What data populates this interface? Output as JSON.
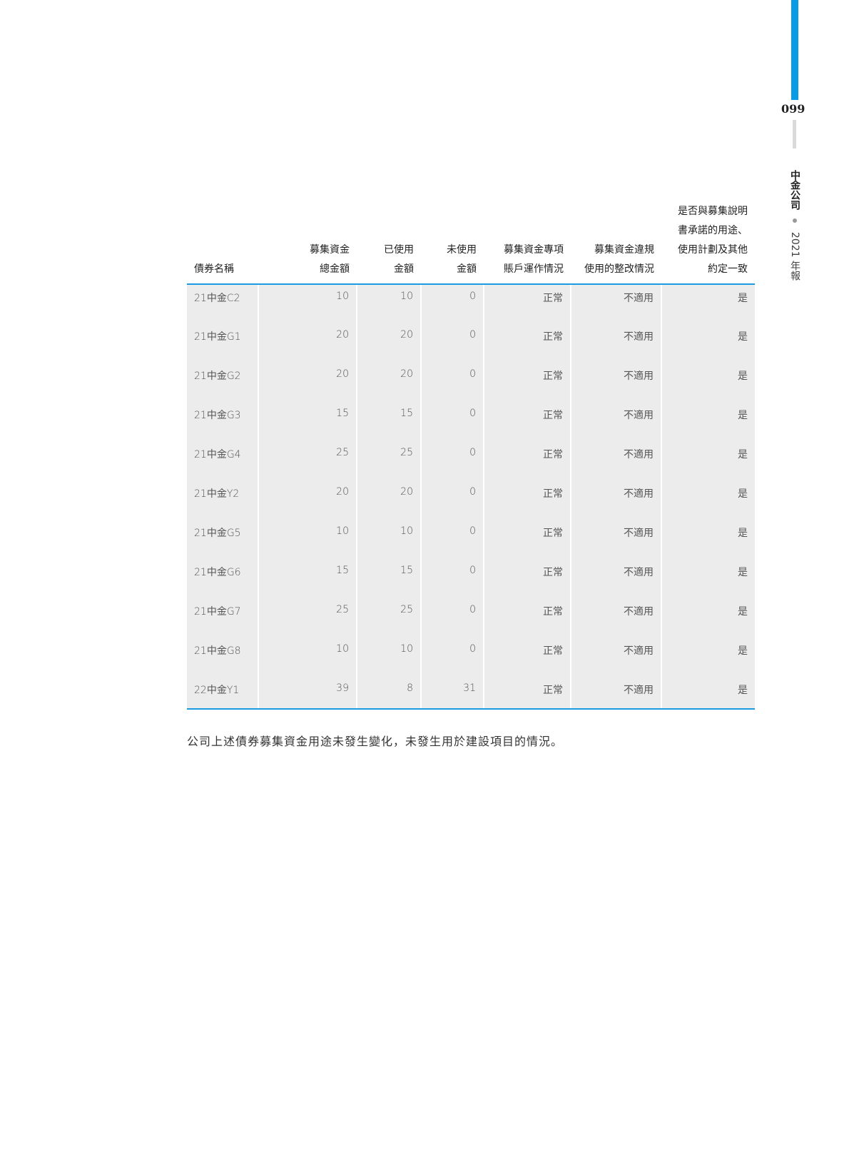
{
  "side": {
    "page_number": "099",
    "company": "中金公司",
    "report": "2021 年報",
    "accent": "#0a9be6"
  },
  "table": {
    "headers": [
      "債券名稱",
      "募集資金\n總金額",
      "已使用\n金額",
      "未使用\n金額",
      "募集資金專項\n賬戶運作情況",
      "募集資金違規\n使用的整改情況",
      "是否與募集說明\n書承諾的用途、\n使用計劃及其他\n約定一致"
    ],
    "rows": [
      [
        "21中金C2",
        "10",
        "10",
        "0",
        "正常",
        "不適用",
        "是"
      ],
      [
        "21中金G1",
        "20",
        "20",
        "0",
        "正常",
        "不適用",
        "是"
      ],
      [
        "21中金G2",
        "20",
        "20",
        "0",
        "正常",
        "不適用",
        "是"
      ],
      [
        "21中金G3",
        "15",
        "15",
        "0",
        "正常",
        "不適用",
        "是"
      ],
      [
        "21中金G4",
        "25",
        "25",
        "0",
        "正常",
        "不適用",
        "是"
      ],
      [
        "21中金Y2",
        "20",
        "20",
        "0",
        "正常",
        "不適用",
        "是"
      ],
      [
        "21中金G5",
        "10",
        "10",
        "0",
        "正常",
        "不適用",
        "是"
      ],
      [
        "21中金G6",
        "15",
        "15",
        "0",
        "正常",
        "不適用",
        "是"
      ],
      [
        "21中金G7",
        "25",
        "25",
        "0",
        "正常",
        "不適用",
        "是"
      ],
      [
        "21中金G8",
        "10",
        "10",
        "0",
        "正常",
        "不適用",
        "是"
      ],
      [
        "22中金Y1",
        "39",
        "8",
        "31",
        "正常",
        "不適用",
        "是"
      ]
    ]
  },
  "note": "公司上述債券募集資金用途未發生變化，未發生用於建設項目的情況。"
}
